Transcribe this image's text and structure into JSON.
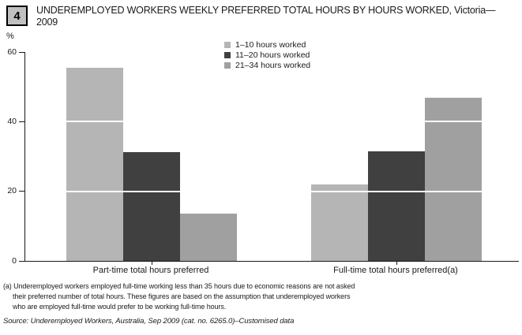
{
  "badge": {
    "number": "4"
  },
  "title": {
    "line1": "UNDEREMPLOYED WORKERS WEEKLY PREFERRED TOTAL HOURS BY HOURS WORKED, Victoria—",
    "line2": "2009"
  },
  "y_axis": {
    "unit": "%"
  },
  "chart_data": {
    "type": "bar",
    "title": "UNDEREMPLOYED WORKERS WEEKLY PREFERRED TOTAL HOURS BY HOURS WORKED, Victoria—2009",
    "categories": [
      "Part-time total hours preferred",
      "Full-time total hours preferred(a)"
    ],
    "series": [
      {
        "name": "1–10 hours worked",
        "color": "#b5b5b5",
        "values": [
          55.5,
          21.9
        ]
      },
      {
        "name": "11–20 hours worked",
        "color": "#404040",
        "values": [
          31.3,
          31.5
        ]
      },
      {
        "name": "21–34 hours worked",
        "color": "#a0a0a0",
        "values": [
          13.6,
          46.8
        ]
      }
    ],
    "xlabel": "",
    "ylabel": "%",
    "ylim": [
      0,
      60
    ],
    "yticks": [
      0,
      20,
      40,
      60
    ],
    "grid": "white gridlines at 20 and 40 drawn over bars",
    "legend_position": "top-center"
  },
  "footnotes": [
    "(a) Underemployed workers employed full-time working less than 35 hours due to economic reasons are not asked",
    "their preferred number of total hours. These figures are based on the assumption that underemployed workers",
    "who are employed full-time would prefer to be working full-time hours."
  ],
  "source": "Source: Underemployed Workers, Australia, Sep 2009 (cat. no. 6265.0)–Customised data"
}
